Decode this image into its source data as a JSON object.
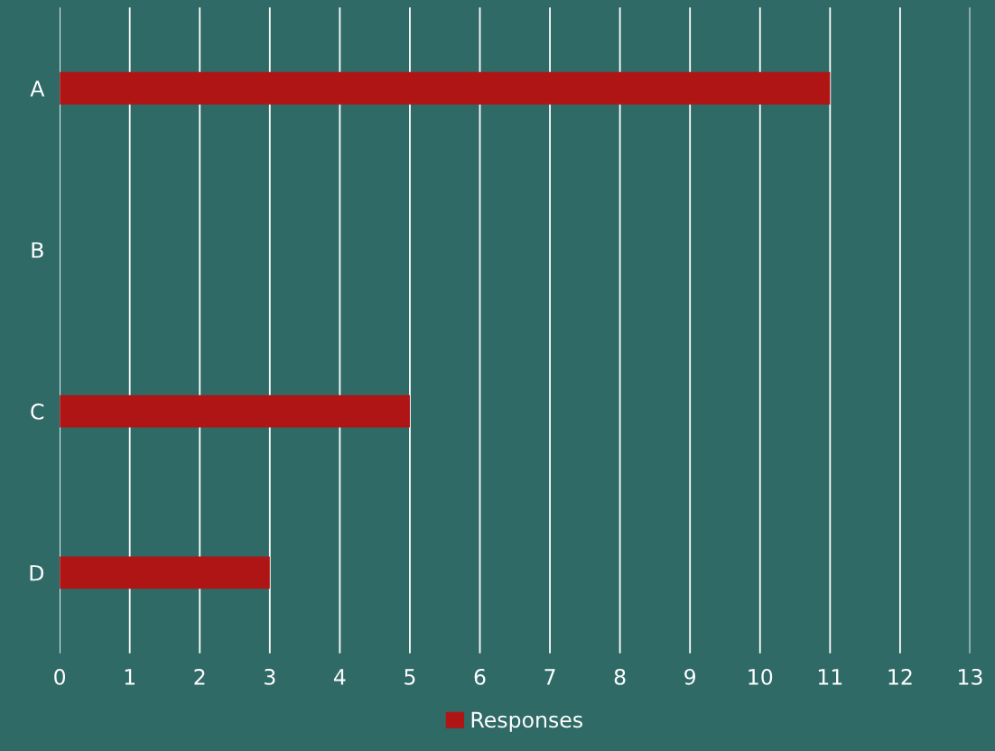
{
  "chart_data": {
    "type": "bar",
    "orientation": "horizontal",
    "categories": [
      "A",
      "B",
      "C",
      "D"
    ],
    "series": [
      {
        "name": "Responses",
        "color": "#b01515",
        "values": [
          11,
          0,
          5,
          3
        ]
      }
    ],
    "xlim": [
      0,
      13
    ],
    "xticks": [
      0,
      1,
      2,
      3,
      4,
      5,
      6,
      7,
      8,
      9,
      10,
      11,
      12,
      13
    ],
    "grid": "x",
    "legend": "bottom"
  }
}
